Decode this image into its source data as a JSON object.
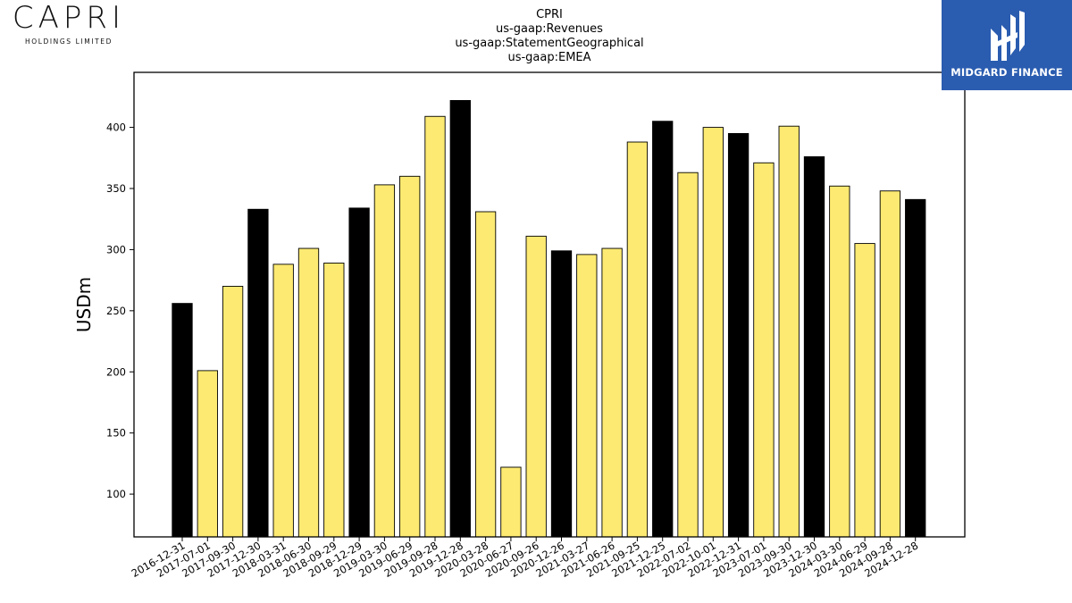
{
  "logos": {
    "capri_name": "CAPRI",
    "capri_subtitle": "HOLDINGS LIMITED",
    "midgard_name": "MIDGARD FINANCE"
  },
  "chart_data": {
    "type": "bar",
    "title_lines": [
      "CPRI",
      "us-gaap:Revenues",
      "us-gaap:StatementGeographical",
      "us-gaap:EMEA"
    ],
    "xlabel": "",
    "ylabel": "USDm",
    "ylim": [
      65,
      445
    ],
    "yticks": [
      100,
      150,
      200,
      250,
      300,
      350,
      400
    ],
    "grid": false,
    "colors": {
      "quarter": "#fcea72",
      "fiscal_year_end": "#000000",
      "edge": "#000000"
    },
    "categories": [
      "2016-12-31",
      "2017-07-01",
      "2017-09-30",
      "2017-12-30",
      "2018-03-31",
      "2018-06-30",
      "2018-09-29",
      "2018-12-29",
      "2019-03-30",
      "2019-06-29",
      "2019-09-28",
      "2019-12-28",
      "2020-03-28",
      "2020-06-27",
      "2020-09-26",
      "2020-12-26",
      "2021-03-27",
      "2021-06-26",
      "2021-09-25",
      "2021-12-25",
      "2022-07-02",
      "2022-10-01",
      "2022-12-31",
      "2023-07-01",
      "2023-09-30",
      "2023-12-30",
      "2024-03-30",
      "2024-06-29",
      "2024-09-28",
      "2024-12-28"
    ],
    "values": [
      256,
      201,
      270,
      333,
      288,
      301,
      289,
      334,
      353,
      360,
      409,
      422,
      331,
      122,
      311,
      299,
      296,
      301,
      388,
      405,
      363,
      400,
      395,
      371,
      401,
      376,
      352,
      305,
      348,
      341
    ],
    "highlight": [
      true,
      false,
      false,
      true,
      false,
      false,
      false,
      true,
      false,
      false,
      false,
      true,
      false,
      false,
      false,
      true,
      false,
      false,
      false,
      true,
      false,
      false,
      true,
      false,
      false,
      true,
      false,
      false,
      false,
      true
    ]
  }
}
